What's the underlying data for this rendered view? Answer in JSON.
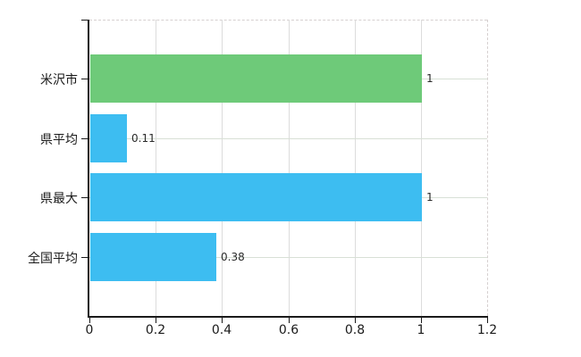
{
  "chart_data": {
    "type": "bar",
    "orientation": "horizontal",
    "title": "",
    "xlabel": "",
    "ylabel": "",
    "categories": [
      "米沢市",
      "県平均",
      "県最大",
      "全国平均"
    ],
    "values": [
      1,
      0.11,
      1,
      0.38
    ],
    "value_labels": [
      "1",
      "0.11",
      "1",
      "0.38"
    ],
    "bar_colors": [
      "#6eca79",
      "#3dbdf1",
      "#3dbdf1",
      "#3dbdf1"
    ],
    "x_ticks": [
      0,
      0.2,
      0.4,
      0.6,
      0.8,
      1,
      1.2
    ],
    "x_tick_labels": [
      "0",
      "0.2",
      "0.4",
      "0.6",
      "0.8",
      "1",
      "1.2"
    ],
    "xlim": [
      0,
      1.2
    ],
    "grid": true,
    "legend": "none",
    "plot_border": "dashed top and right, solid black left and bottom axes",
    "axis_color": "#1a1a1a",
    "gridline_color": "#dcdcdc"
  }
}
